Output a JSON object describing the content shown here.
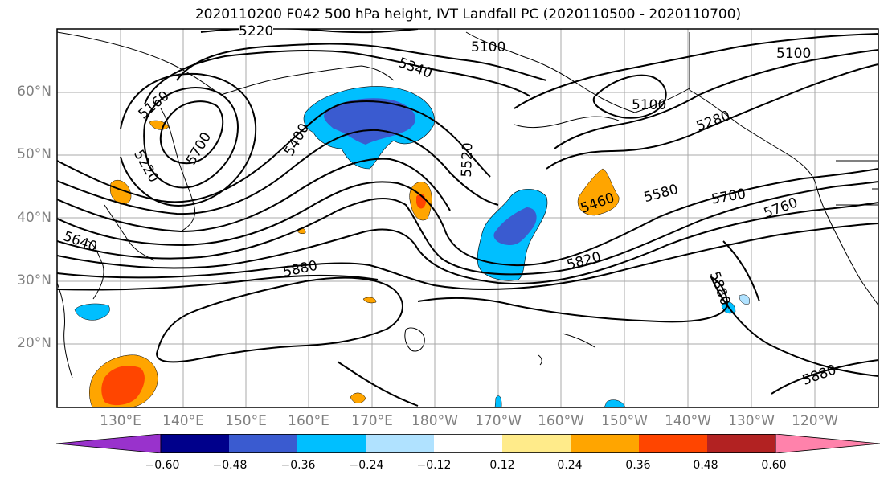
{
  "title": "2020110200 F042 500 hPa height, IVT Landfall PC (2020110500 - 2020110700)",
  "lat_labels": [
    "60°N",
    "50°N",
    "40°N",
    "30°N",
    "20°N"
  ],
  "lon_labels": [
    "130°E",
    "140°E",
    "150°E",
    "160°E",
    "170°E",
    "180°W",
    "170°W",
    "160°W",
    "150°W",
    "140°W",
    "130°W",
    "120°W"
  ],
  "contour_labels": [
    "5220",
    "5100",
    "5340",
    "5160",
    "5700",
    "5220",
    "5400",
    "5520",
    "5100",
    "5280",
    "5460",
    "5580",
    "5700",
    "5760",
    "5640",
    "5880",
    "5820",
    "5880",
    "5880",
    "5100"
  ],
  "colorbar": {
    "ticks": [
      "−0.60",
      "−0.48",
      "−0.36",
      "−0.24",
      "−0.12",
      "0.12",
      "0.24",
      "0.36",
      "0.48",
      "0.60"
    ],
    "colors": [
      "#9932CC",
      "#00008B",
      "#3A5BD0",
      "#00BFFF",
      "#B0E2FF",
      "#FFFFFF",
      "#FFEB8A",
      "#FFA500",
      "#FF4500",
      "#B22222",
      "#FF82AB"
    ]
  },
  "colors": {
    "grid": "#A9A9A9",
    "contour": "#000000",
    "label": "#808080"
  }
}
